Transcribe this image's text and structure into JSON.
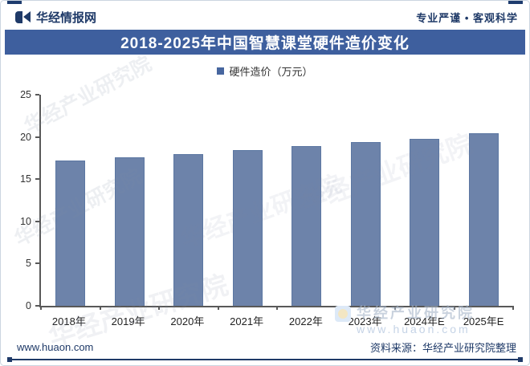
{
  "header": {
    "brand": "华经情报网",
    "slogan": "专业严谨 • 客观科学"
  },
  "title": "2018-2025年中国智慧课堂硬件造价变化",
  "legend": {
    "label": "硬件造价（万元）"
  },
  "chart_data": {
    "type": "bar",
    "title": "2018-2025年中国智慧课堂硬件造价变化",
    "categories": [
      "2018年",
      "2019年",
      "2020年",
      "2021年",
      "2022年",
      "2023年",
      "2024年E",
      "2025年E"
    ],
    "values": [
      17.2,
      17.6,
      18.0,
      18.4,
      18.9,
      19.4,
      19.8,
      20.4
    ],
    "series_name": "硬件造价（万元）",
    "xlabel": "",
    "ylabel": "",
    "ylim": [
      0,
      25
    ],
    "yticks": [
      0,
      5,
      10,
      15,
      20,
      25
    ],
    "grid": false,
    "legend_position": "top-center",
    "bar_color": "#6d83aa"
  },
  "watermark": {
    "text": "华经产业研究院",
    "footer_brand": "华经产业研究院",
    "footer_url": "www.huaon.com"
  },
  "footer": {
    "site": "www.huaon.com",
    "source": "资料来源：华经产业研究院整理"
  },
  "colors": {
    "banner_blue": "#3e5f9e",
    "bar_blue": "#6d83aa",
    "navy_text": "#1f3a68",
    "axis_gray": "#595959"
  }
}
